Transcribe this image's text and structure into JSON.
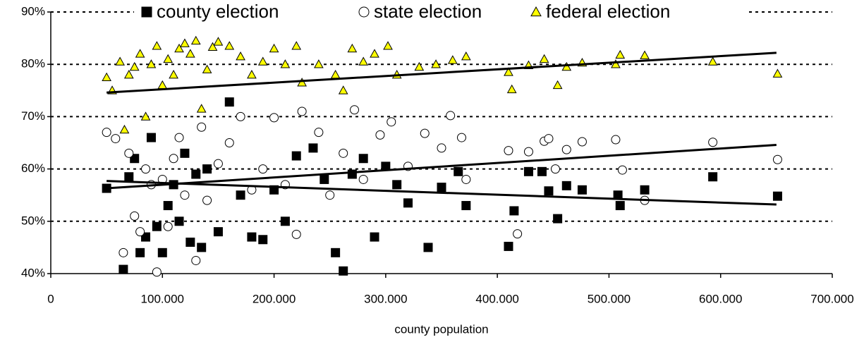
{
  "chart_data": {
    "type": "scatter",
    "x_label": "county population",
    "xlim": [
      0,
      700000
    ],
    "xticks": [
      0,
      {
        "value": 100000,
        "label": "100.000"
      },
      {
        "value": 200000,
        "label": "200.000"
      },
      {
        "value": 300000,
        "label": "300.000"
      },
      {
        "value": 400000,
        "label": "400.000"
      },
      {
        "value": 500000,
        "label": "500.000"
      },
      {
        "value": 600000,
        "label": "600.000"
      },
      {
        "value": 700000,
        "label": "700.000"
      }
    ],
    "ylim": [
      40,
      90
    ],
    "yticks": [
      {
        "value": 40,
        "label": "40%"
      },
      {
        "value": 50,
        "label": "50%"
      },
      {
        "value": 60,
        "label": "60%"
      },
      {
        "value": 70,
        "label": "70%"
      },
      {
        "value": 80,
        "label": "80%"
      },
      {
        "value": 90,
        "label": "90%"
      }
    ],
    "grid": true,
    "legend": "top",
    "series": [
      {
        "name": "county election",
        "color": "#000000",
        "marker": "square",
        "x": [
          50000,
          65000,
          70000,
          75000,
          80000,
          85000,
          90000,
          95000,
          100000,
          105000,
          110000,
          115000,
          120000,
          125000,
          130000,
          135000,
          140000,
          150000,
          160000,
          170000,
          180000,
          190000,
          200000,
          210000,
          220000,
          235000,
          245000,
          255000,
          262000,
          270000,
          280000,
          290000,
          300000,
          310000,
          320000,
          338000,
          350000,
          365000,
          372000,
          410000,
          415000,
          428000,
          440000,
          446000,
          454000,
          462000,
          476000,
          508000,
          510000,
          532000,
          593000,
          651000
        ],
        "values": [
          56.3,
          40.8,
          58.5,
          62,
          44,
          47,
          66,
          49,
          44,
          53,
          57,
          50,
          63,
          46,
          59,
          45,
          60,
          48,
          72.8,
          55,
          47,
          46.5,
          56,
          50,
          62.5,
          64,
          58,
          44,
          40.5,
          59,
          62,
          47,
          60.5,
          57,
          53.5,
          45,
          56.5,
          59.5,
          53,
          45.2,
          52,
          59.5,
          59.5,
          55.8,
          50.5,
          56.8,
          56,
          55,
          53,
          56,
          58.5,
          54.8
        ],
        "trendline": {
          "x": [
            50000,
            650000
          ],
          "values": [
            57.7,
            53.2
          ]
        }
      },
      {
        "name": "state election",
        "color": "#ffffff",
        "marker": "circle",
        "x": [
          50000,
          58000,
          65000,
          70000,
          75000,
          80000,
          85000,
          90000,
          95000,
          100000,
          105000,
          110000,
          115000,
          120000,
          130000,
          135000,
          140000,
          150000,
          160000,
          170000,
          180000,
          190000,
          200000,
          210000,
          220000,
          225000,
          240000,
          250000,
          262000,
          272000,
          280000,
          295000,
          305000,
          320000,
          335000,
          350000,
          358000,
          368000,
          372000,
          410000,
          418000,
          428000,
          442000,
          446000,
          452000,
          462000,
          476000,
          506000,
          512000,
          532000,
          593000,
          651000
        ],
        "values": [
          67,
          65.8,
          44,
          63,
          51,
          48,
          60,
          57,
          40.3,
          58,
          49,
          62,
          66,
          55,
          42.5,
          68,
          54,
          61,
          65,
          70,
          56,
          60,
          69.8,
          57,
          47.5,
          71,
          67,
          55,
          63,
          71.3,
          58,
          66.5,
          69,
          60.5,
          66.8,
          64,
          70.2,
          66,
          58,
          63.5,
          47.6,
          63.3,
          65.3,
          65.8,
          60,
          63.7,
          65.2,
          65.6,
          59.8,
          54,
          65.1,
          61.8
        ],
        "trendline": {
          "x": [
            50000,
            650000
          ],
          "values": [
            56.3,
            64.6
          ]
        }
      },
      {
        "name": "federal election",
        "color": "#ffff00",
        "marker": "triangle",
        "x": [
          50000,
          55000,
          62000,
          66000,
          70000,
          75000,
          80000,
          85000,
          90000,
          95000,
          100000,
          105000,
          110000,
          115000,
          120000,
          125000,
          130000,
          135000,
          140000,
          145000,
          150000,
          160000,
          170000,
          180000,
          190000,
          200000,
          210000,
          220000,
          225000,
          240000,
          255000,
          262000,
          270000,
          280000,
          290000,
          302000,
          310000,
          330000,
          345000,
          360000,
          372000,
          410000,
          413000,
          428000,
          442000,
          454000,
          462000,
          476000,
          506000,
          510000,
          532000,
          593000,
          651000
        ],
        "values": [
          77.5,
          75,
          80.5,
          67.5,
          78,
          79.5,
          82,
          70,
          80,
          83.5,
          76,
          81,
          78,
          83,
          84,
          82,
          84.5,
          71.5,
          79,
          83.3,
          84.3,
          83.5,
          81.5,
          78,
          80.5,
          83,
          80,
          83.5,
          76.5,
          80,
          78,
          75,
          83,
          80.5,
          82,
          83.5,
          78,
          79.5,
          80,
          80.8,
          81.5,
          78.5,
          75.2,
          79.8,
          81,
          76,
          79.5,
          80.3,
          80,
          81.8,
          81.7,
          80.5,
          78.2
        ],
        "trendline": {
          "x": [
            50000,
            650000
          ],
          "values": [
            74.6,
            82.2
          ]
        }
      }
    ]
  }
}
